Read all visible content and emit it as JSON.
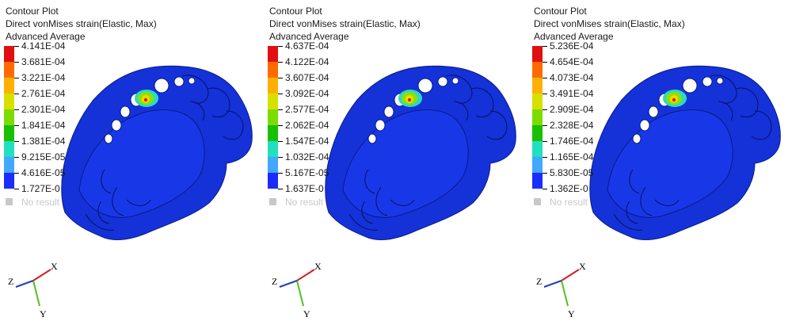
{
  "panels": [
    {
      "title1": "Contour Plot",
      "title2": "Direct vonMises strain(Elastic, Max)",
      "title3": "Advanced Average",
      "legend_values": [
        "4.141E-04",
        "3.681E-04",
        "3.221E-04",
        "2.761E-04",
        "2.301E-04",
        "1.841E-04",
        "1.381E-04",
        "9.215E-05",
        "4.616E-05",
        "1.727E-0"
      ],
      "no_result": "No result",
      "axes": {
        "x": "X",
        "y": "Y",
        "z": "Z"
      }
    },
    {
      "title1": "Contour Plot",
      "title2": "Direct vonMises strain(Elastic, Max)",
      "title3": "Advanced Average",
      "legend_values": [
        "4.637E-04",
        "4.122E-04",
        "3.607E-04",
        "3.092E-04",
        "2.577E-04",
        "2.062E-04",
        "1.547E-04",
        "1.032E-04",
        "5.167E-05",
        "1.637E-0"
      ],
      "no_result": "No result",
      "axes": {
        "x": "X",
        "y": "Y",
        "z": "Z"
      }
    },
    {
      "title1": "Contour Plot",
      "title2": "Direct vonMises strain(Elastic, Max)",
      "title3": "Advanced Average",
      "legend_values": [
        "5.236E-04",
        "4.654E-04",
        "4.073E-04",
        "3.491E-04",
        "2.909E-04",
        "2.328E-04",
        "1.746E-04",
        "1.165E-04",
        "5.830E-05",
        "1.362E-0"
      ],
      "no_result": "No result",
      "axes": {
        "x": "X",
        "y": "Y",
        "z": "Z"
      }
    }
  ],
  "colors": {
    "legend_bands": [
      "#e01010",
      "#ff6a00",
      "#ffb000",
      "#d8e000",
      "#7cdc00",
      "#18c000",
      "#20e0c0",
      "#40a8ff",
      "#1a2cff"
    ],
    "model_blue": "#1432d8",
    "no_result": "#c8c8c8",
    "axis_x": "#d02020",
    "axis_y": "#50c020",
    "axis_z": "#2040c0"
  }
}
